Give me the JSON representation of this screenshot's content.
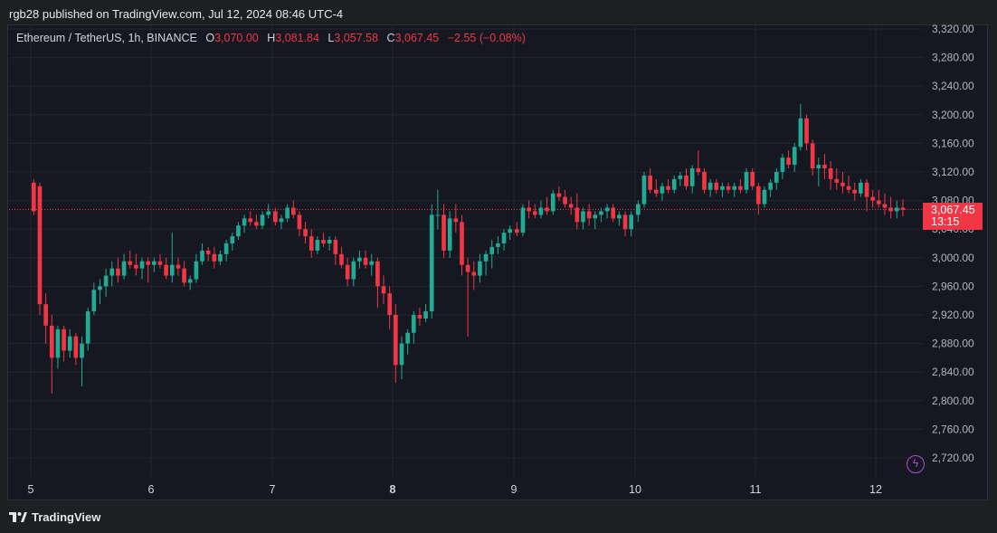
{
  "header": {
    "published": "rgb28 published on TradingView.com, Jul 12, 2024 08:46 UTC-4"
  },
  "legend": {
    "symbol": "Ethereum / TetherUS, 1h, BINANCE",
    "o_label": "O",
    "o_value": "3,070.00",
    "h_label": "H",
    "h_value": "3,081.84",
    "l_label": "L",
    "l_value": "3,057.58",
    "c_label": "C",
    "c_value": "3,067.45",
    "change": "−2.55 (−0.08%)"
  },
  "price_tag": {
    "price": "3,067.45",
    "countdown": "13:15"
  },
  "footer": {
    "brand": "TradingView"
  },
  "colors": {
    "up": "#22ab94",
    "down": "#f23645",
    "background": "#151821",
    "grid": "#23262f"
  },
  "icons": {
    "bolt": "lightning-bolt-icon",
    "brand": "tradingview-logo-icon"
  },
  "chart_data": {
    "type": "candlestick",
    "timeframe": "1h",
    "ylim": [
      2700,
      3330
    ],
    "y_ticks": [
      "3,320.00",
      "3,280.00",
      "3,240.00",
      "3,200.00",
      "3,160.00",
      "3,120.00",
      "3,080.00",
      "3,040.00",
      "3,000.00",
      "2,960.00",
      "2,920.00",
      "2,880.00",
      "2,840.00",
      "2,800.00",
      "2,760.00",
      "2,720.00"
    ],
    "x_ticks": [
      "5",
      "6",
      "7",
      "8",
      "9",
      "10",
      "11",
      "12"
    ],
    "bold_x_tick": "8",
    "current_price": 3067.45,
    "series": [
      {
        "day": "5",
        "ohlc": [
          [
            3105,
            3110,
            3060,
            3065
          ],
          [
            3100,
            3105,
            2920,
            2935
          ],
          [
            2935,
            2950,
            2880,
            2905
          ],
          [
            2905,
            2920,
            2810,
            2860
          ],
          [
            2860,
            2905,
            2845,
            2900
          ],
          [
            2900,
            2905,
            2855,
            2870
          ],
          [
            2870,
            2900,
            2860,
            2890
          ],
          [
            2890,
            2895,
            2850,
            2860
          ],
          [
            2860,
            2890,
            2820,
            2880
          ],
          [
            2880,
            2930,
            2870,
            2925
          ],
          [
            2925,
            2965,
            2920,
            2955
          ],
          [
            2955,
            2970,
            2935,
            2960
          ],
          [
            2960,
            2985,
            2945,
            2975
          ],
          [
            2975,
            2995,
            2960,
            2985
          ],
          [
            2985,
            3000,
            2965,
            2975
          ],
          [
            2975,
            3005,
            2970,
            2995
          ],
          [
            2995,
            3010,
            2985,
            2990
          ],
          [
            2990,
            3005,
            2975,
            2985
          ],
          [
            2985,
            3000,
            2970,
            2995
          ],
          [
            2995,
            3000,
            2965,
            2990
          ]
        ]
      },
      {
        "day": "6",
        "ohlc": [
          [
            2990,
            3000,
            2980,
            2995
          ],
          [
            2995,
            3005,
            2985,
            2990
          ],
          [
            2990,
            3000,
            2970,
            2975
          ],
          [
            2975,
            3035,
            2965,
            2990
          ],
          [
            2990,
            3000,
            2975,
            2985
          ],
          [
            2985,
            2995,
            2960,
            2965
          ],
          [
            2965,
            2975,
            2955,
            2970
          ],
          [
            2970,
            3005,
            2965,
            2995
          ],
          [
            2995,
            3020,
            2990,
            3010
          ],
          [
            3010,
            3015,
            2995,
            3005
          ],
          [
            3005,
            3015,
            2985,
            2995
          ],
          [
            2995,
            3010,
            2990,
            3005
          ],
          [
            3005,
            3025,
            2995,
            3020
          ],
          [
            3020,
            3035,
            3010,
            3030
          ],
          [
            3030,
            3050,
            3025,
            3045
          ],
          [
            3045,
            3060,
            3035,
            3055
          ],
          [
            3055,
            3065,
            3045,
            3050
          ],
          [
            3050,
            3060,
            3040,
            3045
          ],
          [
            3045,
            3065,
            3040,
            3060
          ],
          [
            3060,
            3075,
            3055,
            3065
          ]
        ]
      },
      {
        "day": "7",
        "ohlc": [
          [
            3065,
            3070,
            3045,
            3050
          ],
          [
            3050,
            3060,
            3040,
            3055
          ],
          [
            3055,
            3075,
            3050,
            3070
          ],
          [
            3070,
            3080,
            3055,
            3060
          ],
          [
            3060,
            3065,
            3030,
            3040
          ],
          [
            3040,
            3050,
            3020,
            3030
          ],
          [
            3030,
            3040,
            3000,
            3010
          ],
          [
            3010,
            3030,
            3005,
            3025
          ],
          [
            3025,
            3035,
            3015,
            3020
          ],
          [
            3020,
            3030,
            3010,
            3025
          ],
          [
            3025,
            3030,
            2990,
            3005
          ],
          [
            3005,
            3015,
            2985,
            2990
          ],
          [
            2990,
            3000,
            2960,
            2970
          ],
          [
            2970,
            3000,
            2960,
            2995
          ],
          [
            2995,
            3010,
            2985,
            3000
          ],
          [
            3000,
            3010,
            2985,
            2990
          ],
          [
            2990,
            3005,
            2975,
            2995
          ],
          [
            2995,
            3000,
            2930,
            2960
          ],
          [
            2960,
            2975,
            2935,
            2950
          ],
          [
            2950,
            2960,
            2900,
            2920
          ]
        ]
      },
      {
        "day": "8",
        "ohlc": [
          [
            2920,
            2935,
            2825,
            2850
          ],
          [
            2850,
            2890,
            2830,
            2880
          ],
          [
            2880,
            2900,
            2865,
            2895
          ],
          [
            2895,
            2925,
            2880,
            2920
          ],
          [
            2920,
            2930,
            2905,
            2915
          ],
          [
            2915,
            2935,
            2910,
            2925
          ],
          [
            2925,
            3075,
            2915,
            3060
          ],
          [
            3060,
            3095,
            3040,
            3060
          ],
          [
            3060,
            3075,
            3000,
            3010
          ],
          [
            3010,
            3065,
            3000,
            3055
          ],
          [
            3055,
            3075,
            3035,
            3050
          ],
          [
            3050,
            3060,
            2975,
            2990
          ],
          [
            2990,
            3000,
            2890,
            2980
          ],
          [
            2980,
            2995,
            2955,
            2975
          ],
          [
            2975,
            3005,
            2965,
            2995
          ],
          [
            2995,
            3010,
            2975,
            3005
          ],
          [
            3005,
            3025,
            2985,
            3015
          ],
          [
            3015,
            3030,
            3005,
            3020
          ],
          [
            3020,
            3040,
            3010,
            3035
          ],
          [
            3035,
            3045,
            3025,
            3040
          ]
        ]
      },
      {
        "day": "9",
        "ohlc": [
          [
            3040,
            3050,
            3030,
            3035
          ],
          [
            3035,
            3075,
            3030,
            3070
          ],
          [
            3070,
            3080,
            3055,
            3065
          ],
          [
            3065,
            3075,
            3055,
            3060
          ],
          [
            3060,
            3080,
            3055,
            3070
          ],
          [
            3070,
            3085,
            3060,
            3065
          ],
          [
            3065,
            3095,
            3060,
            3090
          ],
          [
            3090,
            3100,
            3080,
            3085
          ],
          [
            3085,
            3095,
            3070,
            3075
          ],
          [
            3075,
            3085,
            3060,
            3070
          ],
          [
            3070,
            3090,
            3040,
            3050
          ],
          [
            3050,
            3070,
            3040,
            3065
          ],
          [
            3065,
            3075,
            3045,
            3055
          ],
          [
            3055,
            3065,
            3040,
            3060
          ],
          [
            3060,
            3070,
            3050,
            3065
          ],
          [
            3065,
            3075,
            3055,
            3070
          ],
          [
            3070,
            3075,
            3050,
            3055
          ],
          [
            3055,
            3065,
            3045,
            3060
          ],
          [
            3060,
            3065,
            3030,
            3040
          ],
          [
            3040,
            3065,
            3030,
            3060
          ]
        ]
      },
      {
        "day": "10",
        "ohlc": [
          [
            3060,
            3080,
            3050,
            3075
          ],
          [
            3075,
            3120,
            3070,
            3115
          ],
          [
            3115,
            3125,
            3090,
            3095
          ],
          [
            3095,
            3110,
            3085,
            3090
          ],
          [
            3090,
            3105,
            3080,
            3100
          ],
          [
            3100,
            3110,
            3090,
            3095
          ],
          [
            3095,
            3115,
            3090,
            3110
          ],
          [
            3110,
            3120,
            3100,
            3115
          ],
          [
            3115,
            3125,
            3095,
            3100
          ],
          [
            3100,
            3130,
            3090,
            3125
          ],
          [
            3125,
            3150,
            3115,
            3120
          ],
          [
            3120,
            3125,
            3090,
            3095
          ],
          [
            3095,
            3110,
            3085,
            3105
          ],
          [
            3105,
            3110,
            3090,
            3095
          ],
          [
            3095,
            3105,
            3085,
            3100
          ],
          [
            3100,
            3105,
            3090,
            3095
          ],
          [
            3095,
            3105,
            3085,
            3100
          ],
          [
            3100,
            3110,
            3090,
            3095
          ],
          [
            3095,
            3125,
            3090,
            3120
          ],
          [
            3120,
            3125,
            3095,
            3100
          ]
        ]
      },
      {
        "day": "11",
        "ohlc": [
          [
            3100,
            3105,
            3060,
            3075
          ],
          [
            3075,
            3100,
            3070,
            3095
          ],
          [
            3095,
            3110,
            3085,
            3105
          ],
          [
            3105,
            3125,
            3095,
            3120
          ],
          [
            3120,
            3145,
            3110,
            3140
          ],
          [
            3140,
            3150,
            3125,
            3130
          ],
          [
            3130,
            3160,
            3120,
            3155
          ],
          [
            3155,
            3215,
            3150,
            3195
          ],
          [
            3195,
            3200,
            3150,
            3160
          ],
          [
            3160,
            3165,
            3115,
            3125
          ],
          [
            3125,
            3140,
            3100,
            3130
          ],
          [
            3130,
            3145,
            3110,
            3125
          ],
          [
            3125,
            3135,
            3095,
            3110
          ],
          [
            3110,
            3125,
            3095,
            3105
          ],
          [
            3105,
            3120,
            3090,
            3100
          ],
          [
            3100,
            3115,
            3090,
            3095
          ],
          [
            3095,
            3105,
            3080,
            3090
          ],
          [
            3090,
            3110,
            3085,
            3105
          ],
          [
            3105,
            3110,
            3065,
            3085
          ],
          [
            3085,
            3095,
            3070,
            3080
          ]
        ]
      },
      {
        "day": "12",
        "ohlc": [
          [
            3080,
            3095,
            3070,
            3075
          ],
          [
            3075,
            3090,
            3060,
            3070
          ],
          [
            3070,
            3085,
            3055,
            3065
          ],
          [
            3065,
            3080,
            3055,
            3070
          ],
          [
            3070,
            3082,
            3058,
            3067
          ]
        ]
      }
    ]
  }
}
